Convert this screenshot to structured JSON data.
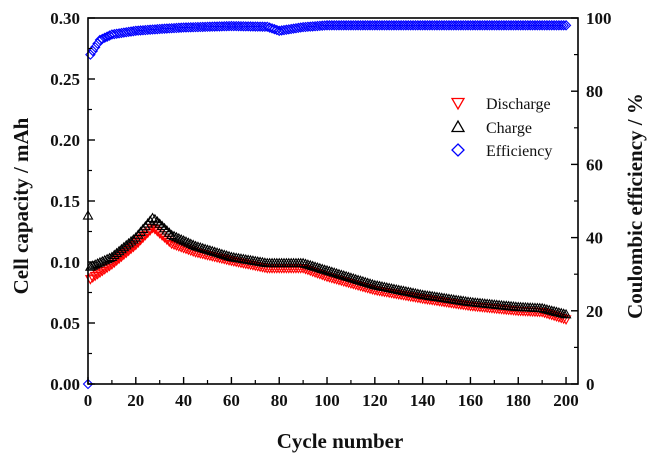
{
  "chart_data": {
    "type": "scatter",
    "xlabel": "Cycle number",
    "ylabel": "Cell capacity / mAh",
    "y2label": "Coulombic efficiency / %",
    "xlim": [
      0,
      205
    ],
    "ylim": [
      0,
      0.3
    ],
    "y2lim": [
      0,
      100
    ],
    "x_ticks": [
      0,
      20,
      40,
      60,
      80,
      100,
      120,
      140,
      160,
      180,
      200
    ],
    "y_ticks": [
      "0.00",
      "0.05",
      "0.10",
      "0.15",
      "0.20",
      "0.25",
      "0.30"
    ],
    "y2_ticks": [
      0,
      20,
      40,
      60,
      80,
      100
    ],
    "legend_position": "upper-right",
    "grid": false,
    "series": [
      {
        "name": "Discharge",
        "axis": "left",
        "marker": "triangle-down",
        "color": "#ff0000",
        "points": [
          [
            1,
            0.086
          ],
          [
            10,
            0.098
          ],
          [
            20,
            0.114
          ],
          [
            27,
            0.128
          ],
          [
            28,
            0.127
          ],
          [
            35,
            0.115
          ],
          [
            45,
            0.108
          ],
          [
            60,
            0.101
          ],
          [
            75,
            0.095
          ],
          [
            85,
            0.095
          ],
          [
            90,
            0.095
          ],
          [
            100,
            0.088
          ],
          [
            120,
            0.077
          ],
          [
            140,
            0.07
          ],
          [
            160,
            0.064
          ],
          [
            180,
            0.06
          ],
          [
            190,
            0.059
          ],
          [
            200,
            0.053
          ]
        ]
      },
      {
        "name": "Charge",
        "axis": "left",
        "marker": "triangle-up",
        "color": "#000000",
        "points": [
          [
            0,
            0.138
          ],
          [
            1,
            0.096
          ],
          [
            10,
            0.104
          ],
          [
            20,
            0.12
          ],
          [
            27,
            0.136
          ],
          [
            28,
            0.135
          ],
          [
            35,
            0.122
          ],
          [
            45,
            0.113
          ],
          [
            60,
            0.104
          ],
          [
            75,
            0.099
          ],
          [
            85,
            0.099
          ],
          [
            90,
            0.099
          ],
          [
            100,
            0.093
          ],
          [
            120,
            0.081
          ],
          [
            140,
            0.073
          ],
          [
            160,
            0.067
          ],
          [
            180,
            0.063
          ],
          [
            190,
            0.062
          ],
          [
            200,
            0.057
          ]
        ]
      },
      {
        "name": "Efficiency",
        "axis": "right",
        "marker": "diamond",
        "color": "#0000ff",
        "points": [
          [
            0,
            0
          ],
          [
            1,
            90
          ],
          [
            3,
            92
          ],
          [
            5,
            94
          ],
          [
            10,
            95.5
          ],
          [
            20,
            96.5
          ],
          [
            30,
            97
          ],
          [
            40,
            97.4
          ],
          [
            60,
            97.8
          ],
          [
            75,
            97.6
          ],
          [
            80,
            96.5
          ],
          [
            85,
            97
          ],
          [
            90,
            97.5
          ],
          [
            100,
            98
          ],
          [
            120,
            98
          ],
          [
            150,
            98
          ],
          [
            180,
            98
          ],
          [
            200,
            98
          ]
        ]
      }
    ]
  }
}
